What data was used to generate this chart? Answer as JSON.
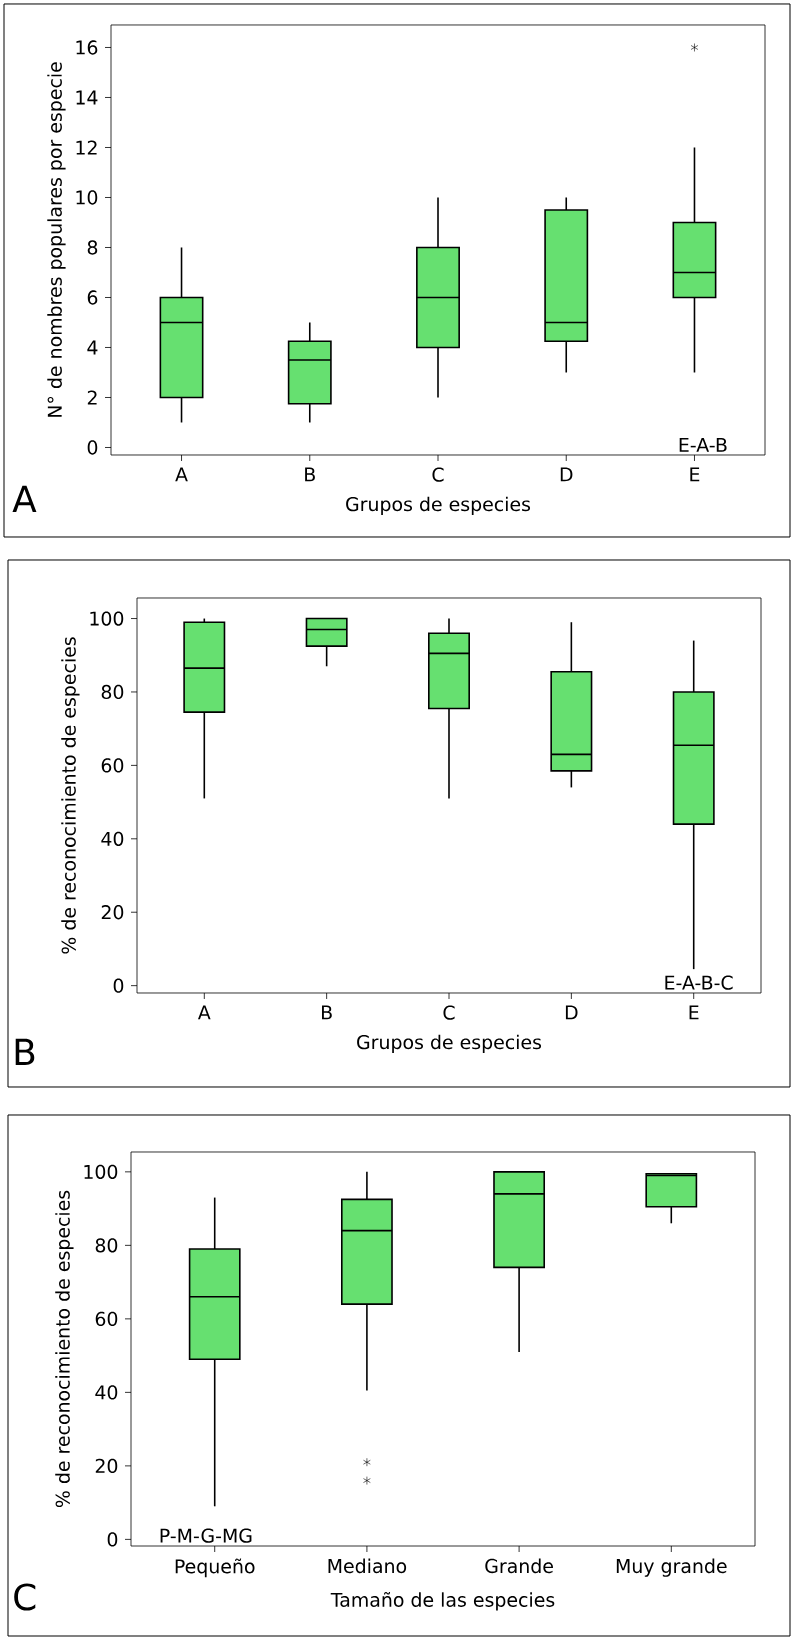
{
  "chart_data": [
    {
      "type": "box",
      "xlabel": "Grupos de especies",
      "ylabel": "N° de nombres populares por especie",
      "categories": [
        "A",
        "B",
        "C",
        "D",
        "E"
      ],
      "ylim": [
        -0.3,
        16.9
      ],
      "yticks": [
        0,
        2,
        4,
        6,
        8,
        10,
        12,
        14,
        16
      ],
      "annotations": [
        "E-A-B",
        "A"
      ],
      "series": [
        {
          "color": "#66e070",
          "boxes": [
            {
              "low": 1,
              "q1": 2,
              "median": 5,
              "q3": 6,
              "high": 8
            },
            {
              "low": 1,
              "q1": 1.75,
              "median": 3.5,
              "q3": 4.25,
              "high": 5
            },
            {
              "low": 2,
              "q1": 4,
              "median": 6,
              "q3": 8,
              "high": 10
            },
            {
              "low": 3,
              "q1": 4.25,
              "median": 5,
              "q3": 9.5,
              "high": 10
            },
            {
              "low": 3,
              "q1": 6,
              "median": 7,
              "q3": 9,
              "high": 12,
              "outliers": [
                16
              ]
            }
          ]
        }
      ]
    },
    {
      "type": "box",
      "xlabel": "Grupos de especies",
      "ylabel": "% de reconocimiento de especies",
      "categories": [
        "A",
        "B",
        "C",
        "D",
        "E"
      ],
      "ylim": [
        -2,
        105.6
      ],
      "yticks": [
        0,
        20,
        40,
        60,
        80,
        100
      ],
      "annotations": [
        "E-A-B-C",
        "B"
      ],
      "series": [
        {
          "color": "#66e070",
          "boxes": [
            {
              "low": 51,
              "q1": 74.5,
              "median": 86.5,
              "q3": 99,
              "high": 100
            },
            {
              "low": 87,
              "q1": 92.5,
              "median": 97,
              "q3": 100,
              "high": 100
            },
            {
              "low": 51,
              "q1": 75.5,
              "median": 90.5,
              "q3": 96,
              "high": 100
            },
            {
              "low": 54,
              "q1": 58.5,
              "median": 63,
              "q3": 85.5,
              "high": 99
            },
            {
              "low": 4.5,
              "q1": 44,
              "median": 65.5,
              "q3": 80,
              "high": 94
            }
          ]
        }
      ]
    },
    {
      "type": "box",
      "xlabel": "Tamaño de las especies",
      "ylabel": "% de reconocimiento de especies",
      "categories": [
        "Pequeño",
        "Mediano",
        "Grande",
        "Muy grande"
      ],
      "ylim": [
        -1.8,
        105.4
      ],
      "yticks": [
        0,
        20,
        40,
        60,
        80,
        100
      ],
      "annotations": [
        "P-M-G-MG",
        "C"
      ],
      "series": [
        {
          "color": "#66e070",
          "boxes": [
            {
              "low": 9,
              "q1": 49,
              "median": 66,
              "q3": 79,
              "high": 93
            },
            {
              "low": 40.5,
              "q1": 64,
              "median": 84,
              "q3": 92.5,
              "high": 100,
              "outliers": [
                21,
                16
              ]
            },
            {
              "low": 51,
              "q1": 74,
              "median": 94,
              "q3": 100,
              "high": 100
            },
            {
              "low": 86,
              "q1": 90.5,
              "median": 99,
              "q3": 99.5,
              "high": 99.5
            }
          ]
        }
      ]
    }
  ]
}
